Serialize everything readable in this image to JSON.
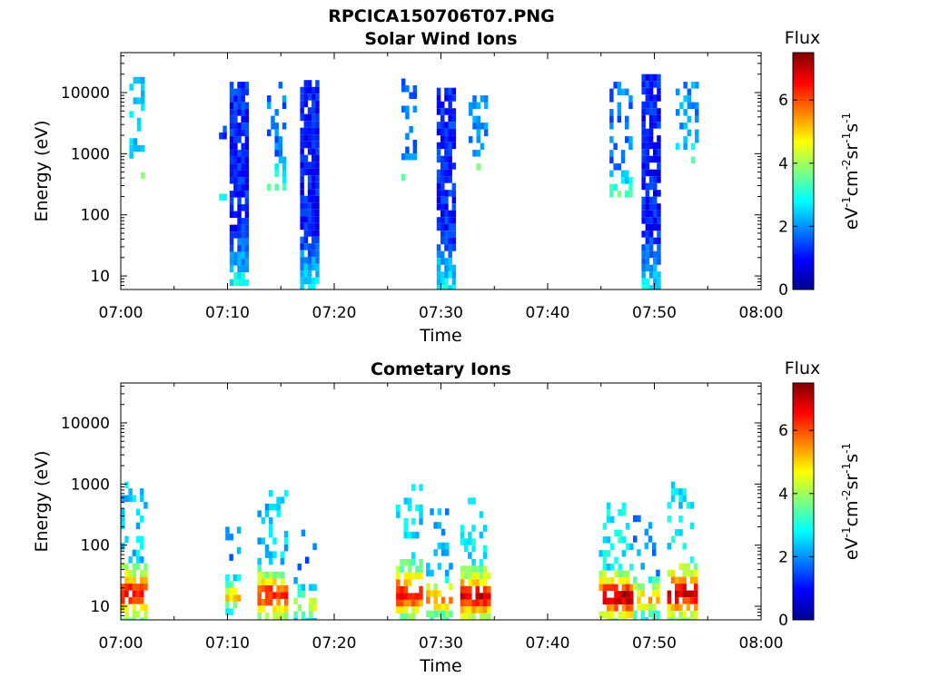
{
  "figure": {
    "title": "RPCICA150706T07.PNG"
  },
  "colormap": "jet",
  "chart_data": [
    {
      "type": "heatmap",
      "title": "Solar Wind Ions",
      "xlabel": "Time",
      "ylabel": "Energy (eV)",
      "x_range": [
        "07:00",
        "08:00"
      ],
      "x_ticks": [
        "07:00",
        "07:10",
        "07:20",
        "07:30",
        "07:40",
        "07:50",
        "08:00"
      ],
      "y_scale": "log",
      "y_range": [
        6,
        45000
      ],
      "y_ticks": [
        10,
        100,
        1000,
        10000
      ],
      "y_tick_labels": [
        "10",
        "100",
        "1000",
        "10000"
      ],
      "colorbar": {
        "label": "Flux",
        "units_base": "eV",
        "range": [
          0,
          7.5
        ],
        "ticks": [
          0,
          2,
          4,
          6
        ],
        "tick_labels": [
          "0",
          "2",
          "4",
          "6"
        ]
      },
      "bursts": [
        {
          "start_min": 0.8,
          "end_min": 2.2,
          "e_min": 400,
          "e_max": 18000,
          "flux": 2.4,
          "density": 0.35
        },
        {
          "start_min": 9.2,
          "end_min": 9.9,
          "e_min": 200,
          "e_max": 8000,
          "flux": 1.3,
          "density": 0.2
        },
        {
          "start_min": 10.2,
          "end_min": 11.7,
          "e_min": 7,
          "e_max": 15000,
          "flux": 1.2,
          "density": 0.85
        },
        {
          "start_min": 13.7,
          "end_min": 15.4,
          "e_min": 300,
          "e_max": 15000,
          "flux": 1.8,
          "density": 0.35
        },
        {
          "start_min": 16.8,
          "end_min": 18.4,
          "e_min": 6,
          "e_max": 16000,
          "flux": 1.1,
          "density": 0.9
        },
        {
          "start_min": 26.3,
          "end_min": 27.4,
          "e_min": 400,
          "e_max": 17000,
          "flux": 1.8,
          "density": 0.3
        },
        {
          "start_min": 29.6,
          "end_min": 31.1,
          "e_min": 6,
          "e_max": 12000,
          "flux": 1.2,
          "density": 0.85
        },
        {
          "start_min": 32.6,
          "end_min": 34.1,
          "e_min": 600,
          "e_max": 9000,
          "flux": 1.9,
          "density": 0.35
        },
        {
          "start_min": 45.8,
          "end_min": 47.6,
          "e_min": 200,
          "e_max": 15000,
          "flux": 1.8,
          "density": 0.3
        },
        {
          "start_min": 48.8,
          "end_min": 50.3,
          "e_min": 6,
          "e_max": 20000,
          "flux": 1.1,
          "density": 0.85
        },
        {
          "start_min": 52.0,
          "end_min": 53.8,
          "e_min": 800,
          "e_max": 15000,
          "flux": 2.0,
          "density": 0.35
        }
      ]
    },
    {
      "type": "heatmap",
      "title": "Cometary Ions",
      "xlabel": "Time",
      "ylabel": "Energy (eV)",
      "x_range": [
        "07:00",
        "08:00"
      ],
      "x_ticks": [
        "07:00",
        "07:10",
        "07:20",
        "07:30",
        "07:40",
        "07:50",
        "08:00"
      ],
      "y_scale": "log",
      "y_range": [
        6,
        45000
      ],
      "y_ticks": [
        10,
        100,
        1000,
        10000
      ],
      "y_tick_labels": [
        "10",
        "100",
        "1000",
        "10000"
      ],
      "colorbar": {
        "label": "Flux",
        "units_base": "eV",
        "range": [
          0,
          7.5
        ],
        "ticks": [
          0,
          2,
          4,
          6
        ],
        "tick_labels": [
          "0",
          "2",
          "4",
          "6"
        ]
      },
      "bursts": [
        {
          "start_min": 0.0,
          "end_min": 2.4,
          "e_min": 6,
          "e_max": 1100,
          "flux": 5.0,
          "density": 0.8
        },
        {
          "start_min": 9.8,
          "end_min": 11.2,
          "e_min": 8,
          "e_max": 200,
          "flux": 3.8,
          "density": 0.6
        },
        {
          "start_min": 12.8,
          "end_min": 15.6,
          "e_min": 6,
          "e_max": 800,
          "flux": 4.8,
          "density": 0.75
        },
        {
          "start_min": 16.2,
          "end_min": 18.2,
          "e_min": 6,
          "e_max": 180,
          "flux": 3.5,
          "density": 0.55
        },
        {
          "start_min": 25.8,
          "end_min": 28.2,
          "e_min": 6,
          "e_max": 1000,
          "flux": 5.0,
          "density": 0.75
        },
        {
          "start_min": 28.6,
          "end_min": 31.0,
          "e_min": 6,
          "e_max": 400,
          "flux": 4.2,
          "density": 0.65
        },
        {
          "start_min": 31.8,
          "end_min": 34.6,
          "e_min": 6,
          "e_max": 600,
          "flux": 5.3,
          "density": 0.75
        },
        {
          "start_min": 44.8,
          "end_min": 47.8,
          "e_min": 6,
          "e_max": 500,
          "flux": 5.5,
          "density": 0.75
        },
        {
          "start_min": 48.0,
          "end_min": 50.3,
          "e_min": 6,
          "e_max": 400,
          "flux": 4.0,
          "density": 0.6
        },
        {
          "start_min": 51.2,
          "end_min": 53.8,
          "e_min": 6,
          "e_max": 1100,
          "flux": 5.3,
          "density": 0.75
        }
      ]
    }
  ]
}
